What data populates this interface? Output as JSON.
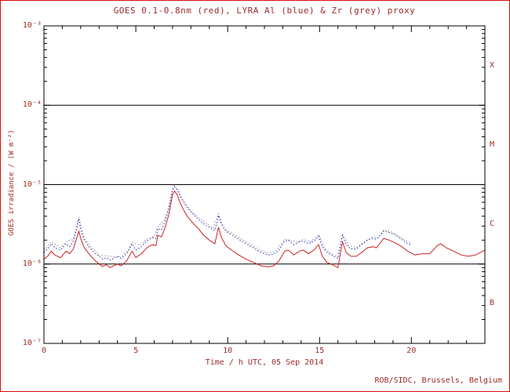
{
  "credit": "ROB/SIDC, Brussels, Belgium",
  "colors": {
    "text": "#9c2b2b",
    "frame": "#dd1111",
    "axis": "#000000",
    "goes_red": "#cc2222",
    "lyra_al_blue": "#3333bb",
    "lyra_zr_grey": "#999999"
  },
  "chart_data": {
    "type": "line",
    "title": "GOES 0.1-0.8nm (red), LYRA Al (blue) & Zr (grey) proxy",
    "xlabel": "Time / h UTC, 05 Sep 2014",
    "ylabel": "GOES irradiance / (W m⁻²)",
    "x_range": [
      0,
      24
    ],
    "x_ticks_major": [
      0,
      5,
      10,
      15,
      20
    ],
    "x_tick_labels": [
      "0",
      "5",
      "10",
      "15",
      "20"
    ],
    "x_minor_step": 1,
    "y_scale": "log",
    "y_range": [
      1e-07,
      0.001
    ],
    "y_ticks": [
      0.001,
      0.0001,
      1e-05,
      1e-06,
      1e-07
    ],
    "y_tick_labels": [
      "10⁻³",
      "10⁻⁴",
      "10⁻⁵",
      "10⁻⁶",
      "10⁻⁷"
    ],
    "class_lines": [
      0.0001,
      1e-05,
      1e-06
    ],
    "class_bands": [
      {
        "label": "X",
        "mid": 0.000316
      },
      {
        "label": "M",
        "mid": 3.16e-05
      },
      {
        "label": "C",
        "mid": 3.16e-06
      },
      {
        "label": "B",
        "mid": 3.16e-07
      }
    ],
    "grid": false,
    "legend_position": "in-title",
    "series": [
      {
        "name": "lyra-zr-proxy",
        "label": "LYRA Zr proxy",
        "color": "#999999",
        "style": "dotted",
        "points": [
          [
            0,
            1.5e-06
          ],
          [
            0.4,
            1.9e-06
          ],
          [
            0.9,
            1.6e-06
          ],
          [
            1.2,
            1.9e-06
          ],
          [
            1.6,
            2.05e-06
          ],
          [
            1.9,
            3.9e-06
          ],
          [
            2.2,
            2.1e-06
          ],
          [
            2.6,
            1.6e-06
          ],
          [
            3.0,
            1.3e-06
          ],
          [
            3.4,
            1.26e-06
          ],
          [
            3.8,
            1.24e-06
          ],
          [
            4.2,
            1.24e-06
          ],
          [
            4.6,
            1.5e-06
          ],
          [
            4.8,
            1.9e-06
          ],
          [
            5.2,
            1.7e-06
          ],
          [
            5.6,
            2.05e-06
          ],
          [
            6.0,
            2.25e-06
          ],
          [
            6.2,
            2.95e-06
          ],
          [
            6.6,
            3.7e-06
          ],
          [
            6.8,
            5.3e-06
          ],
          [
            7.0,
            8.9e-06
          ],
          [
            7.1,
            9.8e-06
          ],
          [
            7.3,
            8.6e-06
          ],
          [
            7.6,
            6.3e-06
          ],
          [
            8.0,
            4.7e-06
          ],
          [
            8.4,
            3.9e-06
          ],
          [
            8.8,
            3.3e-06
          ],
          [
            9.2,
            2.85e-06
          ],
          [
            9.5,
            4.3e-06
          ],
          [
            9.8,
            2.8e-06
          ],
          [
            10.2,
            2.45e-06
          ],
          [
            10.7,
            2.1e-06
          ],
          [
            11.2,
            1.8e-06
          ],
          [
            11.7,
            1.52e-06
          ],
          [
            12.2,
            1.37e-06
          ],
          [
            12.6,
            1.45e-06
          ],
          [
            13.1,
            2.05e-06
          ],
          [
            13.4,
            2e-06
          ],
          [
            13.8,
            1.9e-06
          ],
          [
            14.1,
            2.05e-06
          ],
          [
            14.5,
            1.9e-06
          ],
          [
            14.95,
            2.35e-06
          ],
          [
            15.3,
            1.55e-06
          ],
          [
            15.7,
            1.33e-06
          ],
          [
            16.0,
            1.24e-06
          ],
          [
            16.25,
            2.4e-06
          ],
          [
            16.6,
            1.7e-06
          ],
          [
            17.0,
            1.62e-06
          ],
          [
            17.5,
            1.95e-06
          ],
          [
            17.9,
            2.2e-06
          ],
          [
            18.2,
            2.15e-06
          ],
          [
            18.5,
            2.7e-06
          ],
          [
            18.9,
            2.55e-06
          ],
          [
            19.3,
            2.25e-06
          ],
          [
            19.7,
            1.95e-06
          ],
          [
            20.0,
            1.85e-06
          ]
        ]
      },
      {
        "name": "lyra-al-proxy",
        "label": "LYRA Al proxy",
        "color": "#3333bb",
        "style": "dotted",
        "points": [
          [
            0,
            1.4e-06
          ],
          [
            0.2,
            1.55e-06
          ],
          [
            0.4,
            1.8e-06
          ],
          [
            0.6,
            1.6e-06
          ],
          [
            0.9,
            1.5e-06
          ],
          [
            1.2,
            1.8e-06
          ],
          [
            1.4,
            1.65e-06
          ],
          [
            1.6,
            1.95e-06
          ],
          [
            1.8,
            2.9e-06
          ],
          [
            1.9,
            3.7e-06
          ],
          [
            2.0,
            2.7e-06
          ],
          [
            2.2,
            2e-06
          ],
          [
            2.5,
            1.6e-06
          ],
          [
            2.8,
            1.35e-06
          ],
          [
            3.0,
            1.25e-06
          ],
          [
            3.2,
            1.15e-06
          ],
          [
            3.4,
            1.2e-06
          ],
          [
            3.6,
            1.12e-06
          ],
          [
            3.8,
            1.18e-06
          ],
          [
            4.0,
            1.25e-06
          ],
          [
            4.2,
            1.18e-06
          ],
          [
            4.5,
            1.35e-06
          ],
          [
            4.8,
            1.8e-06
          ],
          [
            5.0,
            1.5e-06
          ],
          [
            5.3,
            1.65e-06
          ],
          [
            5.6,
            1.95e-06
          ],
          [
            5.9,
            2.15e-06
          ],
          [
            6.1,
            2.1e-06
          ],
          [
            6.2,
            2.8e-06
          ],
          [
            6.4,
            2.7e-06
          ],
          [
            6.6,
            3.5e-06
          ],
          [
            6.8,
            5e-06
          ],
          [
            7.0,
            8.5e-06
          ],
          [
            7.1,
            9.4e-06
          ],
          [
            7.25,
            8.6e-06
          ],
          [
            7.4,
            7.2e-06
          ],
          [
            7.6,
            6e-06
          ],
          [
            7.8,
            5.1e-06
          ],
          [
            8.1,
            4.3e-06
          ],
          [
            8.4,
            3.7e-06
          ],
          [
            8.7,
            3.2e-06
          ],
          [
            9.0,
            2.9e-06
          ],
          [
            9.3,
            2.65e-06
          ],
          [
            9.5,
            4.1e-06
          ],
          [
            9.65,
            3.2e-06
          ],
          [
            9.9,
            2.6e-06
          ],
          [
            10.2,
            2.35e-06
          ],
          [
            10.6,
            2.05e-06
          ],
          [
            11.0,
            1.8e-06
          ],
          [
            11.4,
            1.6e-06
          ],
          [
            11.8,
            1.4e-06
          ],
          [
            12.2,
            1.3e-06
          ],
          [
            12.5,
            1.32e-06
          ],
          [
            12.8,
            1.5e-06
          ],
          [
            13.1,
            1.95e-06
          ],
          [
            13.3,
            2e-06
          ],
          [
            13.6,
            1.75e-06
          ],
          [
            13.9,
            1.9e-06
          ],
          [
            14.1,
            1.95e-06
          ],
          [
            14.4,
            1.8e-06
          ],
          [
            14.7,
            1.95e-06
          ],
          [
            14.95,
            2.25e-06
          ],
          [
            15.15,
            1.65e-06
          ],
          [
            15.4,
            1.4e-06
          ],
          [
            15.7,
            1.28e-06
          ],
          [
            16.0,
            1.18e-06
          ],
          [
            16.25,
            2.3e-06
          ],
          [
            16.45,
            1.75e-06
          ],
          [
            16.7,
            1.55e-06
          ],
          [
            17.0,
            1.55e-06
          ],
          [
            17.3,
            1.75e-06
          ],
          [
            17.6,
            2e-06
          ],
          [
            17.9,
            2.1e-06
          ],
          [
            18.1,
            2.05e-06
          ],
          [
            18.5,
            2.6e-06
          ],
          [
            18.8,
            2.5e-06
          ],
          [
            19.1,
            2.35e-06
          ],
          [
            19.4,
            2.1e-06
          ],
          [
            19.8,
            1.8e-06
          ],
          [
            20.0,
            1.75e-06
          ]
        ]
      },
      {
        "name": "goes-xray",
        "label": "GOES 0.1-0.8nm",
        "color": "#cc2222",
        "style": "solid",
        "points": [
          [
            0,
            1.15e-06
          ],
          [
            0.2,
            1.25e-06
          ],
          [
            0.4,
            1.45e-06
          ],
          [
            0.6,
            1.3e-06
          ],
          [
            0.9,
            1.2e-06
          ],
          [
            1.2,
            1.45e-06
          ],
          [
            1.4,
            1.35e-06
          ],
          [
            1.6,
            1.55e-06
          ],
          [
            1.8,
            2.2e-06
          ],
          [
            1.9,
            2.6e-06
          ],
          [
            2.0,
            2.1e-06
          ],
          [
            2.2,
            1.6e-06
          ],
          [
            2.5,
            1.3e-06
          ],
          [
            2.8,
            1.1e-06
          ],
          [
            3.0,
            1e-06
          ],
          [
            3.2,
            9.3e-07
          ],
          [
            3.4,
            9.8e-07
          ],
          [
            3.6,
            9e-07
          ],
          [
            3.8,
            9.5e-07
          ],
          [
            4.0,
            1e-06
          ],
          [
            4.2,
            9.5e-07
          ],
          [
            4.5,
            1.1e-06
          ],
          [
            4.8,
            1.45e-06
          ],
          [
            5.0,
            1.2e-06
          ],
          [
            5.3,
            1.35e-06
          ],
          [
            5.6,
            1.6e-06
          ],
          [
            5.9,
            1.75e-06
          ],
          [
            6.1,
            1.7e-06
          ],
          [
            6.2,
            2.3e-06
          ],
          [
            6.4,
            2.2e-06
          ],
          [
            6.6,
            2.9e-06
          ],
          [
            6.8,
            4.2e-06
          ],
          [
            7.0,
            7.5e-06
          ],
          [
            7.1,
            8.3e-06
          ],
          [
            7.25,
            7.5e-06
          ],
          [
            7.4,
            6e-06
          ],
          [
            7.6,
            4.8e-06
          ],
          [
            7.8,
            4e-06
          ],
          [
            8.1,
            3.3e-06
          ],
          [
            8.4,
            2.8e-06
          ],
          [
            8.7,
            2.3e-06
          ],
          [
            9.0,
            2e-06
          ],
          [
            9.3,
            1.8e-06
          ],
          [
            9.5,
            2.9e-06
          ],
          [
            9.65,
            2.2e-06
          ],
          [
            9.9,
            1.7e-06
          ],
          [
            10.2,
            1.5e-06
          ],
          [
            10.6,
            1.3e-06
          ],
          [
            11.0,
            1.15e-06
          ],
          [
            11.4,
            1.05e-06
          ],
          [
            11.8,
            9.5e-07
          ],
          [
            12.2,
            9.2e-07
          ],
          [
            12.5,
            9.5e-07
          ],
          [
            12.8,
            1.1e-06
          ],
          [
            13.1,
            1.45e-06
          ],
          [
            13.3,
            1.5e-06
          ],
          [
            13.6,
            1.3e-06
          ],
          [
            13.9,
            1.45e-06
          ],
          [
            14.1,
            1.5e-06
          ],
          [
            14.4,
            1.35e-06
          ],
          [
            14.7,
            1.5e-06
          ],
          [
            14.95,
            1.75e-06
          ],
          [
            15.15,
            1.25e-06
          ],
          [
            15.4,
            1.05e-06
          ],
          [
            15.7,
            9.8e-07
          ],
          [
            16.0,
            9e-07
          ],
          [
            16.25,
            1.9e-06
          ],
          [
            16.45,
            1.4e-06
          ],
          [
            16.7,
            1.25e-06
          ],
          [
            17.0,
            1.25e-06
          ],
          [
            17.3,
            1.4e-06
          ],
          [
            17.6,
            1.6e-06
          ],
          [
            17.9,
            1.65e-06
          ],
          [
            18.1,
            1.6e-06
          ],
          [
            18.5,
            2.1e-06
          ],
          [
            18.8,
            2e-06
          ],
          [
            19.1,
            1.85e-06
          ],
          [
            19.4,
            1.7e-06
          ],
          [
            19.8,
            1.45e-06
          ],
          [
            20.2,
            1.3e-06
          ],
          [
            20.6,
            1.35e-06
          ],
          [
            21.0,
            1.35e-06
          ],
          [
            21.4,
            1.7e-06
          ],
          [
            21.6,
            1.8e-06
          ],
          [
            21.9,
            1.6e-06
          ],
          [
            22.3,
            1.45e-06
          ],
          [
            22.7,
            1.3e-06
          ],
          [
            23.1,
            1.25e-06
          ],
          [
            23.5,
            1.3e-06
          ],
          [
            24,
            1.5e-06
          ]
        ]
      }
    ]
  }
}
